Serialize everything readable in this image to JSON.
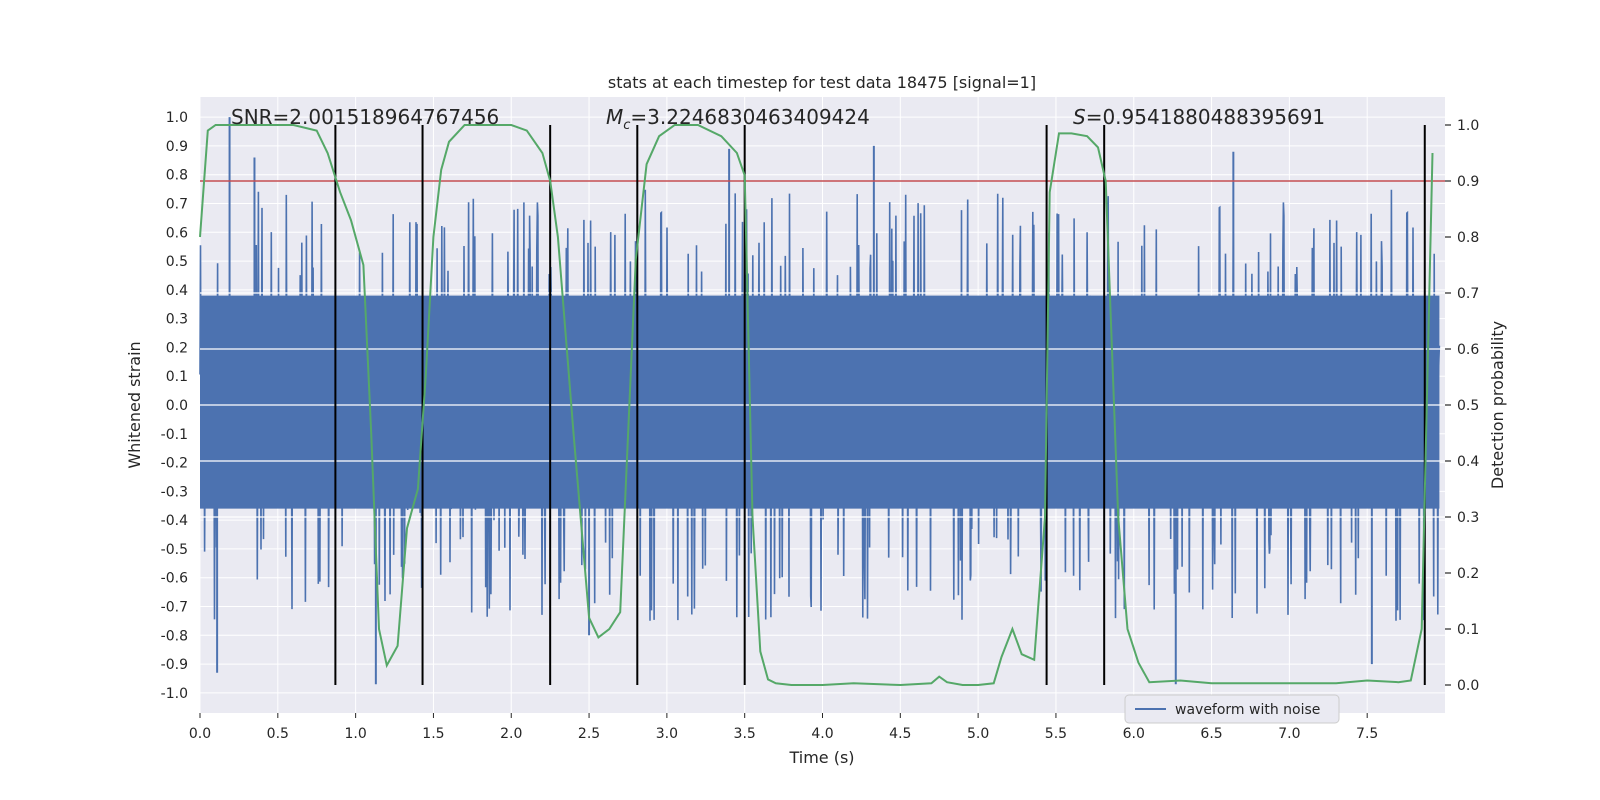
{
  "chart_data": {
    "type": "line",
    "title": "stats at each timestep for test data 18475 [signal=1]",
    "xlabel": "Time (s)",
    "ylabel_left": "Whitened strain",
    "ylabel_right": "Detection probability",
    "xlim": [
      0.0,
      8.0
    ],
    "ylim_left": [
      -1.07,
      1.07
    ],
    "ylim_right": [
      -0.05,
      1.05
    ],
    "x_ticks": [
      "0.0",
      "0.5",
      "1.0",
      "1.5",
      "2.0",
      "2.5",
      "3.0",
      "3.5",
      "4.0",
      "4.5",
      "5.0",
      "5.5",
      "6.0",
      "6.5",
      "7.0",
      "7.5"
    ],
    "y_ticks_left": [
      "-1.0",
      "-0.9",
      "-0.8",
      "-0.7",
      "-0.6",
      "-0.5",
      "-0.4",
      "-0.3",
      "-0.2",
      "-0.1",
      "0.0",
      "0.1",
      "0.2",
      "0.3",
      "0.4",
      "0.5",
      "0.6",
      "0.7",
      "0.8",
      "0.9",
      "1.0"
    ],
    "y_ticks_right": [
      "0.0",
      "0.1",
      "0.2",
      "0.3",
      "0.4",
      "0.5",
      "0.6",
      "0.7",
      "0.8",
      "0.9",
      "1.0"
    ],
    "annotations": {
      "snr": "SNR=2.001518964767456",
      "mc_symbol": "M",
      "mc_subscript": "c",
      "mc_value": "=3.2246830463409424",
      "s_symbol": "S",
      "s_value": "=0.9541880488395691"
    },
    "threshold": 0.9,
    "threshold_color": "#c44e52",
    "vertical_lines_x": [
      0.87,
      1.43,
      2.25,
      2.81,
      3.5,
      5.44,
      5.81,
      7.87
    ],
    "waveform": {
      "name": "waveform with noise",
      "color": "#4c72b0",
      "amplitude_envelope": 0.42,
      "peaks": [
        [
          0.19,
          1.0
        ],
        [
          0.11,
          -0.93
        ],
        [
          4.33,
          0.9
        ],
        [
          6.27,
          -0.97
        ],
        [
          1.13,
          -0.97
        ],
        [
          0.35,
          0.86
        ],
        [
          3.4,
          0.89
        ],
        [
          2.5,
          -0.8
        ],
        [
          7.53,
          -0.9
        ],
        [
          6.64,
          0.88
        ]
      ]
    },
    "probability": {
      "color": "#55a868",
      "x": [
        0.0,
        0.05,
        0.1,
        0.2,
        0.4,
        0.6,
        0.75,
        0.82,
        0.9,
        0.97,
        1.05,
        1.1,
        1.15,
        1.2,
        1.27,
        1.33,
        1.4,
        1.45,
        1.5,
        1.55,
        1.6,
        1.7,
        1.8,
        2.0,
        2.1,
        2.2,
        2.25,
        2.3,
        2.4,
        2.5,
        2.56,
        2.63,
        2.7,
        2.8,
        2.87,
        2.95,
        3.05,
        3.2,
        3.35,
        3.45,
        3.5,
        3.55,
        3.6,
        3.65,
        3.7,
        3.8,
        4.0,
        4.2,
        4.5,
        4.7,
        4.75,
        4.8,
        4.9,
        5.0,
        5.1,
        5.15,
        5.22,
        5.28,
        5.36,
        5.43,
        5.46,
        5.52,
        5.6,
        5.7,
        5.77,
        5.82,
        5.9,
        5.96,
        6.03,
        6.1,
        6.3,
        6.5,
        6.8,
        7.1,
        7.3,
        7.5,
        7.7,
        7.78,
        7.85,
        7.92
      ],
      "y": [
        0.8,
        0.99,
        1.0,
        1.0,
        1.0,
        1.0,
        0.99,
        0.95,
        0.88,
        0.83,
        0.75,
        0.45,
        0.1,
        0.035,
        0.07,
        0.28,
        0.35,
        0.55,
        0.8,
        0.92,
        0.97,
        1.0,
        1.0,
        1.0,
        0.99,
        0.95,
        0.9,
        0.8,
        0.45,
        0.12,
        0.085,
        0.1,
        0.13,
        0.76,
        0.93,
        0.98,
        1.0,
        1.0,
        0.98,
        0.95,
        0.91,
        0.3,
        0.06,
        0.01,
        0.003,
        0.0,
        0.0,
        0.003,
        0.0,
        0.003,
        0.015,
        0.005,
        0.0,
        0.0,
        0.003,
        0.05,
        0.1,
        0.055,
        0.045,
        0.3,
        0.88,
        0.985,
        0.985,
        0.98,
        0.96,
        0.9,
        0.3,
        0.1,
        0.04,
        0.005,
        0.008,
        0.003,
        0.003,
        0.003,
        0.003,
        0.008,
        0.005,
        0.008,
        0.1,
        0.95
      ]
    },
    "legend_position": "lower-center-right",
    "grid": true,
    "background": "#eaeaf2"
  }
}
